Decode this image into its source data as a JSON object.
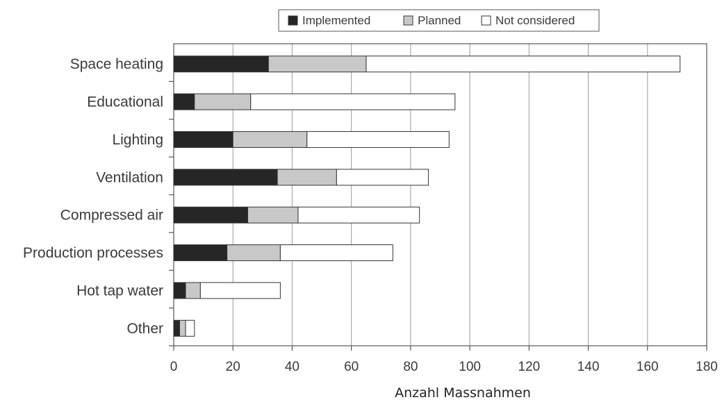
{
  "chart_data": {
    "type": "bar",
    "orientation": "horizontal",
    "stacked": true,
    "title": "",
    "xlabel": "Anzahl Massnahmen",
    "ylabel": "",
    "xlim": [
      0,
      180
    ],
    "xticks": [
      0,
      20,
      40,
      60,
      80,
      100,
      120,
      140,
      160,
      180
    ],
    "grid": "vertical",
    "legend_position": "top",
    "categories": [
      "Space heating",
      "Educational",
      "Lighting",
      "Ventilation",
      "Compressed air",
      "Production processes",
      "Hot tap water",
      "Other"
    ],
    "series": [
      {
        "name": "Implemented",
        "color": "#262626",
        "values": [
          32,
          7,
          20,
          35,
          25,
          18,
          4,
          2
        ]
      },
      {
        "name": "Planned",
        "color": "#c8c8c8",
        "values": [
          33,
          19,
          25,
          20,
          17,
          18,
          5,
          2
        ]
      },
      {
        "name": "Not considered",
        "color": "#ffffff",
        "values": [
          106,
          69,
          48,
          31,
          41,
          38,
          27,
          3
        ]
      }
    ]
  }
}
